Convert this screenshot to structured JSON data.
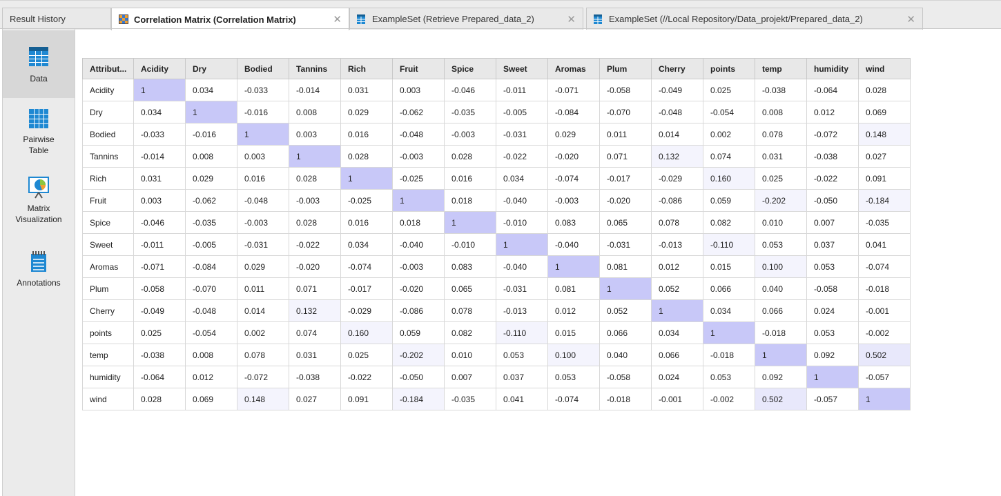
{
  "tabs": [
    {
      "label": "Result History"
    },
    {
      "label": "Correlation Matrix (Correlation Matrix)"
    },
    {
      "label": "ExampleSet (Retrieve Prepared_data_2)"
    },
    {
      "label": "ExampleSet (//Local Repository/Data_projekt/Prepared_data_2)"
    }
  ],
  "close_glyph": "✕",
  "sidebar": {
    "items": [
      {
        "label": "Data"
      },
      {
        "label_line1": "Pairwise",
        "label_line2": "Table"
      },
      {
        "label_line1": "Matrix",
        "label_line2": "Visualization"
      },
      {
        "label": "Annotations"
      }
    ]
  },
  "matrix": {
    "corner": "Attribut...",
    "headers": [
      "Acidity",
      "Dry",
      "Bodied",
      "Tannins",
      "Rich",
      "Fruit",
      "Spice",
      "Sweet",
      "Aromas",
      "Plum",
      "Cherry",
      "points",
      "temp",
      "humidity",
      "wind"
    ],
    "rows": [
      {
        "name": "Acidity",
        "values": [
          "1",
          "0.034",
          "-0.033",
          "-0.014",
          "0.031",
          "0.003",
          "-0.046",
          "-0.011",
          "-0.071",
          "-0.058",
          "-0.049",
          "0.025",
          "-0.038",
          "-0.064",
          "0.028"
        ]
      },
      {
        "name": "Dry",
        "values": [
          "0.034",
          "1",
          "-0.016",
          "0.008",
          "0.029",
          "-0.062",
          "-0.035",
          "-0.005",
          "-0.084",
          "-0.070",
          "-0.048",
          "-0.054",
          "0.008",
          "0.012",
          "0.069"
        ]
      },
      {
        "name": "Bodied",
        "values": [
          "-0.033",
          "-0.016",
          "1",
          "0.003",
          "0.016",
          "-0.048",
          "-0.003",
          "-0.031",
          "0.029",
          "0.011",
          "0.014",
          "0.002",
          "0.078",
          "-0.072",
          "0.148"
        ]
      },
      {
        "name": "Tannins",
        "values": [
          "-0.014",
          "0.008",
          "0.003",
          "1",
          "0.028",
          "-0.003",
          "0.028",
          "-0.022",
          "-0.020",
          "0.071",
          "0.132",
          "0.074",
          "0.031",
          "-0.038",
          "0.027"
        ]
      },
      {
        "name": "Rich",
        "values": [
          "0.031",
          "0.029",
          "0.016",
          "0.028",
          "1",
          "-0.025",
          "0.016",
          "0.034",
          "-0.074",
          "-0.017",
          "-0.029",
          "0.160",
          "0.025",
          "-0.022",
          "0.091"
        ]
      },
      {
        "name": "Fruit",
        "values": [
          "0.003",
          "-0.062",
          "-0.048",
          "-0.003",
          "-0.025",
          "1",
          "0.018",
          "-0.040",
          "-0.003",
          "-0.020",
          "-0.086",
          "0.059",
          "-0.202",
          "-0.050",
          "-0.184"
        ]
      },
      {
        "name": "Spice",
        "values": [
          "-0.046",
          "-0.035",
          "-0.003",
          "0.028",
          "0.016",
          "0.018",
          "1",
          "-0.010",
          "0.083",
          "0.065",
          "0.078",
          "0.082",
          "0.010",
          "0.007",
          "-0.035"
        ]
      },
      {
        "name": "Sweet",
        "values": [
          "-0.011",
          "-0.005",
          "-0.031",
          "-0.022",
          "0.034",
          "-0.040",
          "-0.010",
          "1",
          "-0.040",
          "-0.031",
          "-0.013",
          "-0.110",
          "0.053",
          "0.037",
          "0.041"
        ]
      },
      {
        "name": "Aromas",
        "values": [
          "-0.071",
          "-0.084",
          "0.029",
          "-0.020",
          "-0.074",
          "-0.003",
          "0.083",
          "-0.040",
          "1",
          "0.081",
          "0.012",
          "0.015",
          "0.100",
          "0.053",
          "-0.074"
        ]
      },
      {
        "name": "Plum",
        "values": [
          "-0.058",
          "-0.070",
          "0.011",
          "0.071",
          "-0.017",
          "-0.020",
          "0.065",
          "-0.031",
          "0.081",
          "1",
          "0.052",
          "0.066",
          "0.040",
          "-0.058",
          "-0.018"
        ]
      },
      {
        "name": "Cherry",
        "values": [
          "-0.049",
          "-0.048",
          "0.014",
          "0.132",
          "-0.029",
          "-0.086",
          "0.078",
          "-0.013",
          "0.012",
          "0.052",
          "1",
          "0.034",
          "0.066",
          "0.024",
          "-0.001"
        ]
      },
      {
        "name": "points",
        "values": [
          "0.025",
          "-0.054",
          "0.002",
          "0.074",
          "0.160",
          "0.059",
          "0.082",
          "-0.110",
          "0.015",
          "0.066",
          "0.034",
          "1",
          "-0.018",
          "0.053",
          "-0.002"
        ]
      },
      {
        "name": "temp",
        "values": [
          "-0.038",
          "0.008",
          "0.078",
          "0.031",
          "0.025",
          "-0.202",
          "0.010",
          "0.053",
          "0.100",
          "0.040",
          "0.066",
          "-0.018",
          "1",
          "0.092",
          "0.502"
        ]
      },
      {
        "name": "humidity",
        "values": [
          "-0.064",
          "0.012",
          "-0.072",
          "-0.038",
          "-0.022",
          "-0.050",
          "0.007",
          "0.037",
          "0.053",
          "-0.058",
          "0.024",
          "0.053",
          "0.092",
          "1",
          "-0.057"
        ]
      },
      {
        "name": "wind",
        "values": [
          "0.028",
          "0.069",
          "0.148",
          "0.027",
          "0.091",
          "-0.184",
          "-0.035",
          "0.041",
          "-0.074",
          "-0.018",
          "-0.001",
          "-0.002",
          "0.502",
          "-0.057",
          "1"
        ]
      }
    ]
  },
  "colors": {
    "diagonal": "#c8c8f8",
    "light_highlight": "#f4f4fd",
    "medium_highlight": "#e8e8fb",
    "icon_blue": "#1e88d2"
  }
}
